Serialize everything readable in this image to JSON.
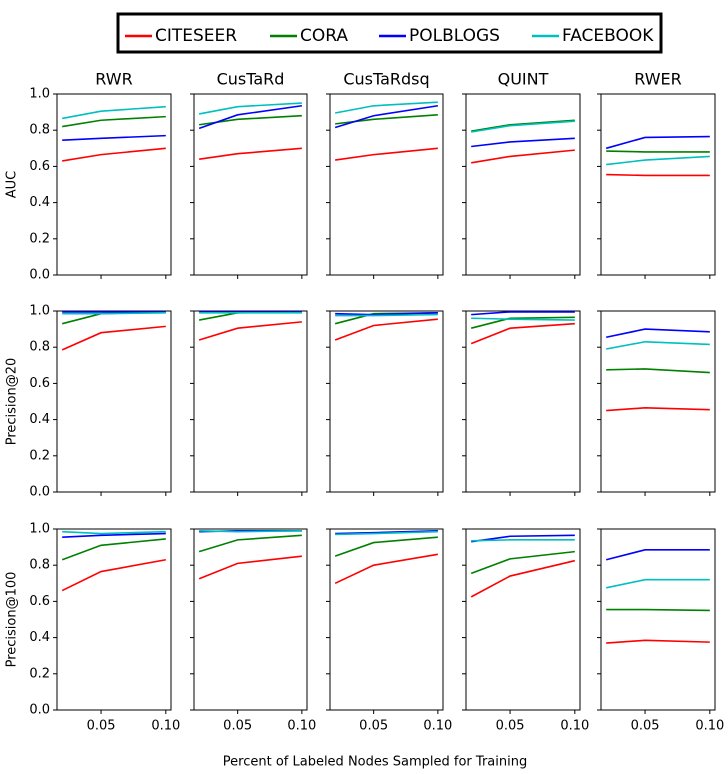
{
  "legend": {
    "location": "upper center"
  },
  "xlabel": "Percent of Labeled Nodes Sampled for Training",
  "chart_data": [
    {
      "type": "line",
      "title": "RWR",
      "ylabel": "AUC",
      "x": [
        0.02,
        0.05,
        0.1
      ],
      "xlim": [
        0.016,
        0.104
      ],
      "ylim": [
        0,
        1
      ],
      "xticks": [
        0.05,
        0.1
      ],
      "yticks": [
        {
          "value": 0,
          "label": "0.0"
        },
        {
          "value": 0.2,
          "label": "0.2"
        },
        {
          "value": 0.4,
          "label": "0.4"
        },
        {
          "value": 0.6,
          "label": "0.6"
        },
        {
          "value": 0.8,
          "label": "0.8"
        },
        {
          "value": 1,
          "label": "1.0"
        }
      ],
      "series": [
        {
          "name": "CITESEER",
          "color": "#ff0000",
          "values": [
            0.63,
            0.665,
            0.7
          ]
        },
        {
          "name": "CORA",
          "color": "#008000",
          "values": [
            0.82,
            0.855,
            0.875
          ]
        },
        {
          "name": "POLBLOGS",
          "color": "#0000ff",
          "values": [
            0.745,
            0.755,
            0.77
          ]
        },
        {
          "name": "FACEBOOK",
          "color": "#00bfbf",
          "values": [
            0.865,
            0.905,
            0.93
          ]
        }
      ]
    },
    {
      "type": "line",
      "title": "CusTaRd",
      "x": [
        0.02,
        0.05,
        0.1
      ],
      "xlim": [
        0.016,
        0.104
      ],
      "ylim": [
        0,
        1
      ],
      "xticks": [
        0.05,
        0.1
      ],
      "yticks": [
        0,
        0.2,
        0.4,
        0.6,
        0.8,
        1
      ],
      "series": [
        {
          "name": "CITESEER",
          "color": "#ff0000",
          "values": [
            0.64,
            0.67,
            0.7
          ]
        },
        {
          "name": "CORA",
          "color": "#008000",
          "values": [
            0.83,
            0.86,
            0.88
          ]
        },
        {
          "name": "POLBLOGS",
          "color": "#0000ff",
          "values": [
            0.81,
            0.885,
            0.935
          ]
        },
        {
          "name": "FACEBOOK",
          "color": "#00bfbf",
          "values": [
            0.89,
            0.93,
            0.95
          ]
        }
      ]
    },
    {
      "type": "line",
      "title": "CusTaRdsq",
      "x": [
        0.02,
        0.05,
        0.1
      ],
      "xlim": [
        0.016,
        0.104
      ],
      "ylim": [
        0,
        1
      ],
      "xticks": [
        0.05,
        0.1
      ],
      "yticks": [
        0,
        0.2,
        0.4,
        0.6,
        0.8,
        1
      ],
      "series": [
        {
          "name": "CITESEER",
          "color": "#ff0000",
          "values": [
            0.635,
            0.665,
            0.7
          ]
        },
        {
          "name": "CORA",
          "color": "#008000",
          "values": [
            0.835,
            0.86,
            0.885
          ]
        },
        {
          "name": "POLBLOGS",
          "color": "#0000ff",
          "values": [
            0.815,
            0.88,
            0.935
          ]
        },
        {
          "name": "FACEBOOK",
          "color": "#00bfbf",
          "values": [
            0.895,
            0.935,
            0.955
          ]
        }
      ]
    },
    {
      "type": "line",
      "title": "QUINT",
      "x": [
        0.02,
        0.05,
        0.1
      ],
      "xlim": [
        0.016,
        0.104
      ],
      "ylim": [
        0,
        1
      ],
      "xticks": [
        0.05,
        0.1
      ],
      "yticks": [
        0,
        0.2,
        0.4,
        0.6,
        0.8,
        1
      ],
      "series": [
        {
          "name": "CITESEER",
          "color": "#ff0000",
          "values": [
            0.62,
            0.655,
            0.69
          ]
        },
        {
          "name": "CORA",
          "color": "#008000",
          "values": [
            0.795,
            0.83,
            0.855
          ]
        },
        {
          "name": "POLBLOGS",
          "color": "#0000ff",
          "values": [
            0.71,
            0.735,
            0.755
          ]
        },
        {
          "name": "FACEBOOK",
          "color": "#00bfbf",
          "values": [
            0.79,
            0.825,
            0.85
          ]
        }
      ]
    },
    {
      "type": "line",
      "title": "RWER",
      "x": [
        0.02,
        0.05,
        0.1
      ],
      "xlim": [
        0.016,
        0.104
      ],
      "ylim": [
        0,
        1
      ],
      "xticks": [
        0.05,
        0.1
      ],
      "yticks": [
        0,
        0.2,
        0.4,
        0.6,
        0.8,
        1
      ],
      "series": [
        {
          "name": "CITESEER",
          "color": "#ff0000",
          "values": [
            0.555,
            0.55,
            0.55
          ]
        },
        {
          "name": "CORA",
          "color": "#008000",
          "values": [
            0.685,
            0.68,
            0.68
          ]
        },
        {
          "name": "POLBLOGS",
          "color": "#0000ff",
          "values": [
            0.7,
            0.76,
            0.765
          ]
        },
        {
          "name": "FACEBOOK",
          "color": "#00bfbf",
          "values": [
            0.61,
            0.635,
            0.655
          ]
        }
      ]
    },
    {
      "type": "line",
      "ylabel": "Precision@20",
      "x": [
        0.02,
        0.05,
        0.1
      ],
      "xlim": [
        0.016,
        0.104
      ],
      "ylim": [
        0,
        1
      ],
      "xticks": [
        0.05,
        0.1
      ],
      "yticks": [
        {
          "value": 0,
          "label": "0.0"
        },
        {
          "value": 0.2,
          "label": "0.2"
        },
        {
          "value": 0.4,
          "label": "0.4"
        },
        {
          "value": 0.6,
          "label": "0.6"
        },
        {
          "value": 0.8,
          "label": "0.8"
        },
        {
          "value": 1,
          "label": "1.0"
        }
      ],
      "series": [
        {
          "name": "CITESEER",
          "color": "#ff0000",
          "values": [
            0.785,
            0.88,
            0.915
          ]
        },
        {
          "name": "CORA",
          "color": "#008000",
          "values": [
            0.93,
            0.985,
            0.995
          ]
        },
        {
          "name": "POLBLOGS",
          "color": "#0000ff",
          "values": [
            0.995,
            0.995,
            0.995
          ]
        },
        {
          "name": "FACEBOOK",
          "color": "#00bfbf",
          "values": [
            0.985,
            0.985,
            0.99
          ]
        }
      ]
    },
    {
      "type": "line",
      "x": [
        0.02,
        0.05,
        0.1
      ],
      "xlim": [
        0.016,
        0.104
      ],
      "ylim": [
        0,
        1
      ],
      "xticks": [
        0.05,
        0.1
      ],
      "yticks": [
        0,
        0.2,
        0.4,
        0.6,
        0.8,
        1
      ],
      "series": [
        {
          "name": "CITESEER",
          "color": "#ff0000",
          "values": [
            0.84,
            0.905,
            0.94
          ]
        },
        {
          "name": "CORA",
          "color": "#008000",
          "values": [
            0.95,
            0.99,
            0.995
          ]
        },
        {
          "name": "POLBLOGS",
          "color": "#0000ff",
          "values": [
            0.995,
            0.995,
            0.995
          ]
        },
        {
          "name": "FACEBOOK",
          "color": "#00bfbf",
          "values": [
            0.99,
            0.99,
            0.99
          ]
        }
      ]
    },
    {
      "type": "line",
      "x": [
        0.02,
        0.05,
        0.1
      ],
      "xlim": [
        0.016,
        0.104
      ],
      "ylim": [
        0,
        1
      ],
      "xticks": [
        0.05,
        0.1
      ],
      "yticks": [
        0,
        0.2,
        0.4,
        0.6,
        0.8,
        1
      ],
      "series": [
        {
          "name": "CITESEER",
          "color": "#ff0000",
          "values": [
            0.84,
            0.92,
            0.955
          ]
        },
        {
          "name": "CORA",
          "color": "#008000",
          "values": [
            0.93,
            0.985,
            0.99
          ]
        },
        {
          "name": "POLBLOGS",
          "color": "#0000ff",
          "values": [
            0.985,
            0.98,
            0.99
          ]
        },
        {
          "name": "FACEBOOK",
          "color": "#00bfbf",
          "values": [
            0.975,
            0.975,
            0.98
          ]
        }
      ]
    },
    {
      "type": "line",
      "x": [
        0.02,
        0.05,
        0.1
      ],
      "xlim": [
        0.016,
        0.104
      ],
      "ylim": [
        0,
        1
      ],
      "xticks": [
        0.05,
        0.1
      ],
      "yticks": [
        0,
        0.2,
        0.4,
        0.6,
        0.8,
        1
      ],
      "series": [
        {
          "name": "CITESEER",
          "color": "#ff0000",
          "values": [
            0.82,
            0.905,
            0.93
          ]
        },
        {
          "name": "CORA",
          "color": "#008000",
          "values": [
            0.905,
            0.96,
            0.965
          ]
        },
        {
          "name": "POLBLOGS",
          "color": "#0000ff",
          "values": [
            0.98,
            0.995,
            0.995
          ]
        },
        {
          "name": "FACEBOOK",
          "color": "#00bfbf",
          "values": [
            0.96,
            0.955,
            0.95
          ]
        }
      ]
    },
    {
      "type": "line",
      "x": [
        0.02,
        0.05,
        0.1
      ],
      "xlim": [
        0.016,
        0.104
      ],
      "ylim": [
        0,
        1
      ],
      "xticks": [
        0.05,
        0.1
      ],
      "yticks": [
        0,
        0.2,
        0.4,
        0.6,
        0.8,
        1
      ],
      "series": [
        {
          "name": "CITESEER",
          "color": "#ff0000",
          "values": [
            0.45,
            0.465,
            0.455
          ]
        },
        {
          "name": "CORA",
          "color": "#008000",
          "values": [
            0.675,
            0.68,
            0.66
          ]
        },
        {
          "name": "POLBLOGS",
          "color": "#0000ff",
          "values": [
            0.855,
            0.9,
            0.885
          ]
        },
        {
          "name": "FACEBOOK",
          "color": "#00bfbf",
          "values": [
            0.79,
            0.83,
            0.815
          ]
        }
      ]
    },
    {
      "type": "line",
      "ylabel": "Precision@100",
      "x": [
        0.02,
        0.05,
        0.1
      ],
      "xlim": [
        0.016,
        0.104
      ],
      "ylim": [
        0,
        1
      ],
      "xticks": [
        0.05,
        {
          "value": 0.1,
          "label": "0.10"
        }
      ],
      "yticks": [
        {
          "value": 0,
          "label": "0.0"
        },
        {
          "value": 0.2,
          "label": "0.2"
        },
        {
          "value": 0.4,
          "label": "0.4"
        },
        {
          "value": 0.6,
          "label": "0.6"
        },
        {
          "value": 0.8,
          "label": "0.8"
        },
        {
          "value": 1,
          "label": "1.0"
        }
      ],
      "series": [
        {
          "name": "CITESEER",
          "color": "#ff0000",
          "values": [
            0.66,
            0.765,
            0.83
          ]
        },
        {
          "name": "CORA",
          "color": "#008000",
          "values": [
            0.83,
            0.91,
            0.945
          ]
        },
        {
          "name": "POLBLOGS",
          "color": "#0000ff",
          "values": [
            0.955,
            0.965,
            0.975
          ]
        },
        {
          "name": "FACEBOOK",
          "color": "#00bfbf",
          "values": [
            0.985,
            0.975,
            0.985
          ]
        }
      ]
    },
    {
      "type": "line",
      "x": [
        0.02,
        0.05,
        0.1
      ],
      "xlim": [
        0.016,
        0.104
      ],
      "ylim": [
        0,
        1
      ],
      "xticks": [
        0.05,
        {
          "value": 0.1,
          "label": "0.10"
        }
      ],
      "yticks": [
        0,
        0.2,
        0.4,
        0.6,
        0.8,
        1
      ],
      "series": [
        {
          "name": "CITESEER",
          "color": "#ff0000",
          "values": [
            0.725,
            0.81,
            0.85
          ]
        },
        {
          "name": "CORA",
          "color": "#008000",
          "values": [
            0.875,
            0.94,
            0.965
          ]
        },
        {
          "name": "POLBLOGS",
          "color": "#0000ff",
          "values": [
            0.985,
            0.99,
            0.99
          ]
        },
        {
          "name": "FACEBOOK",
          "color": "#00bfbf",
          "values": [
            0.99,
            0.985,
            0.99
          ]
        }
      ]
    },
    {
      "type": "line",
      "x": [
        0.02,
        0.05,
        0.1
      ],
      "xlim": [
        0.016,
        0.104
      ],
      "ylim": [
        0,
        1
      ],
      "xticks": [
        0.05,
        {
          "value": 0.1,
          "label": "0.10"
        }
      ],
      "yticks": [
        0,
        0.2,
        0.4,
        0.6,
        0.8,
        1
      ],
      "series": [
        {
          "name": "CITESEER",
          "color": "#ff0000",
          "values": [
            0.7,
            0.8,
            0.86
          ]
        },
        {
          "name": "CORA",
          "color": "#008000",
          "values": [
            0.85,
            0.925,
            0.955
          ]
        },
        {
          "name": "POLBLOGS",
          "color": "#0000ff",
          "values": [
            0.975,
            0.98,
            0.99
          ]
        },
        {
          "name": "FACEBOOK",
          "color": "#00bfbf",
          "values": [
            0.97,
            0.975,
            0.985
          ]
        }
      ]
    },
    {
      "type": "line",
      "x": [
        0.02,
        0.05,
        0.1
      ],
      "xlim": [
        0.016,
        0.104
      ],
      "ylim": [
        0,
        1
      ],
      "xticks": [
        0.05,
        {
          "value": 0.1,
          "label": "0.10"
        }
      ],
      "yticks": [
        0,
        0.2,
        0.4,
        0.6,
        0.8,
        1
      ],
      "series": [
        {
          "name": "CITESEER",
          "color": "#ff0000",
          "values": [
            0.625,
            0.74,
            0.825
          ]
        },
        {
          "name": "CORA",
          "color": "#008000",
          "values": [
            0.755,
            0.835,
            0.875
          ]
        },
        {
          "name": "POLBLOGS",
          "color": "#0000ff",
          "values": [
            0.93,
            0.96,
            0.965
          ]
        },
        {
          "name": "FACEBOOK",
          "color": "#00bfbf",
          "values": [
            0.935,
            0.94,
            0.94
          ]
        }
      ]
    },
    {
      "type": "line",
      "x": [
        0.02,
        0.05,
        0.1
      ],
      "xlim": [
        0.016,
        0.104
      ],
      "ylim": [
        0,
        1
      ],
      "xticks": [
        0.05,
        {
          "value": 0.1,
          "label": "0.10"
        }
      ],
      "yticks": [
        0,
        0.2,
        0.4,
        0.6,
        0.8,
        1
      ],
      "series": [
        {
          "name": "CITESEER",
          "color": "#ff0000",
          "values": [
            0.37,
            0.385,
            0.375
          ]
        },
        {
          "name": "CORA",
          "color": "#008000",
          "values": [
            0.555,
            0.555,
            0.55
          ]
        },
        {
          "name": "POLBLOGS",
          "color": "#0000ff",
          "values": [
            0.83,
            0.885,
            0.885
          ]
        },
        {
          "name": "FACEBOOK",
          "color": "#00bfbf",
          "values": [
            0.675,
            0.72,
            0.72
          ]
        }
      ]
    }
  ]
}
